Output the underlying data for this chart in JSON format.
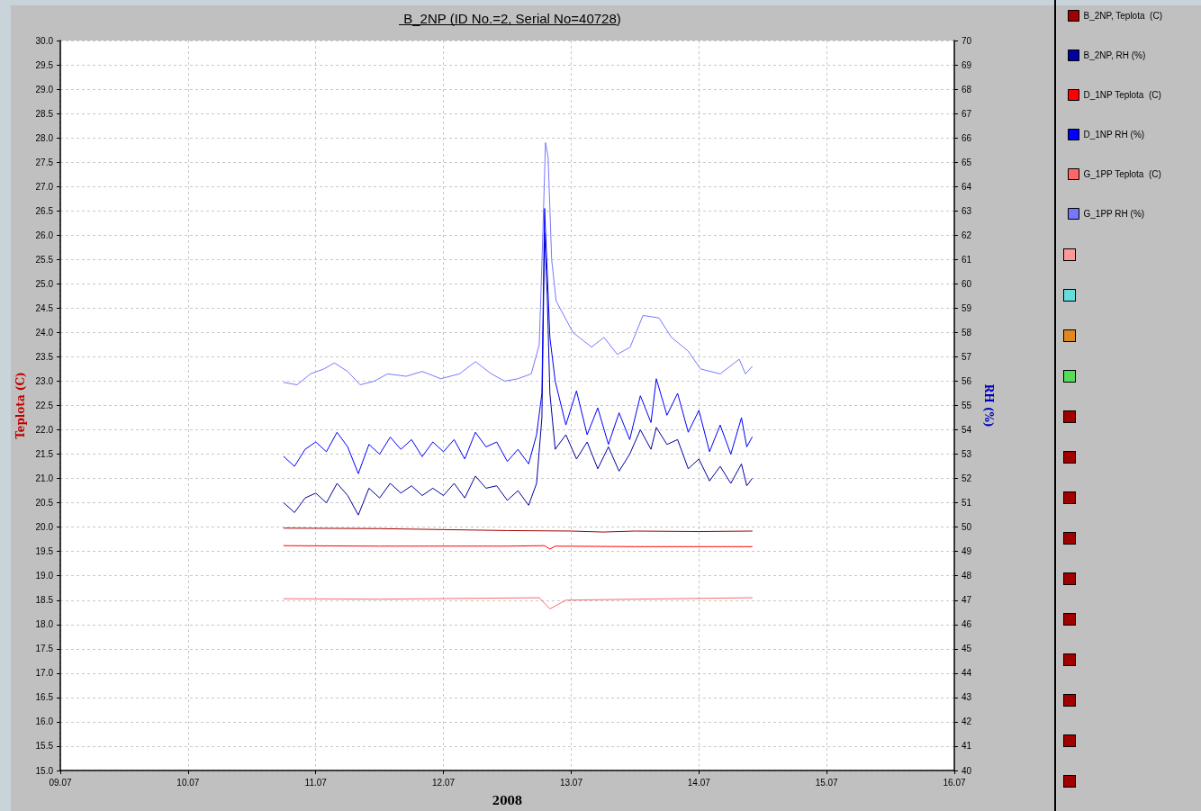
{
  "chart_data": {
    "type": "line",
    "title": "B_2NP (ID No.=2, Serial No=40728)",
    "xlabel": "2008",
    "ylabel": "Teplota (C)",
    "y2label": "RH (%)",
    "xlim": [
      "2008-07-09",
      "2008-07-16"
    ],
    "xticks": [
      {
        "value": "2008-07-09",
        "label": "09.07"
      },
      {
        "value": "2008-07-10",
        "label": "10.07"
      },
      {
        "value": "2008-07-11",
        "label": "11.07"
      },
      {
        "value": "2008-07-12",
        "label": "12.07"
      },
      {
        "value": "2008-07-13",
        "label": "13.07"
      },
      {
        "value": "2008-07-14",
        "label": "14.07"
      },
      {
        "value": "2008-07-15",
        "label": "15.07"
      },
      {
        "value": "2008-07-16",
        "label": "16.07"
      }
    ],
    "ylim": [
      15,
      30
    ],
    "yticks": [
      {
        "value": 15,
        "label": "15.0"
      },
      {
        "value": 15.5,
        "label": "15.5"
      },
      {
        "value": 16,
        "label": "16.0"
      },
      {
        "value": 16.5,
        "label": "16.5"
      },
      {
        "value": 17,
        "label": "17.0"
      },
      {
        "value": 17.5,
        "label": "17.5"
      },
      {
        "value": 18,
        "label": "18.0"
      },
      {
        "value": 18.5,
        "label": "18.5"
      },
      {
        "value": 19,
        "label": "19.0"
      },
      {
        "value": 19.5,
        "label": "19.5"
      },
      {
        "value": 20,
        "label": "20.0"
      },
      {
        "value": 20.5,
        "label": "20.5"
      },
      {
        "value": 21,
        "label": "21.0"
      },
      {
        "value": 21.5,
        "label": "21.5"
      },
      {
        "value": 22,
        "label": "22.0"
      },
      {
        "value": 22.5,
        "label": "22.5"
      },
      {
        "value": 23,
        "label": "23.0"
      },
      {
        "value": 23.5,
        "label": "23.5"
      },
      {
        "value": 24,
        "label": "24.0"
      },
      {
        "value": 24.5,
        "label": "24.5"
      },
      {
        "value": 25,
        "label": "25.0"
      },
      {
        "value": 25.5,
        "label": "25.5"
      },
      {
        "value": 26,
        "label": "26.0"
      },
      {
        "value": 26.5,
        "label": "26.5"
      },
      {
        "value": 27,
        "label": "27.0"
      },
      {
        "value": 27.5,
        "label": "27.5"
      },
      {
        "value": 28,
        "label": "28.0"
      },
      {
        "value": 28.5,
        "label": "28.5"
      },
      {
        "value": 29,
        "label": "29.0"
      },
      {
        "value": 29.5,
        "label": "29.5"
      },
      {
        "value": 30,
        "label": "30.0"
      }
    ],
    "y2lim": [
      40,
      70
    ],
    "y2ticks": [
      40,
      41,
      42,
      43,
      44,
      45,
      46,
      47,
      48,
      49,
      50,
      51,
      52,
      53,
      54,
      55,
      56,
      57,
      58,
      59,
      60,
      61,
      62,
      63,
      64,
      65,
      66,
      67,
      68,
      69,
      70
    ],
    "grid": true,
    "legend": "right",
    "marker": "none",
    "line_style": "solid",
    "series": [
      {
        "name": "B_2NP, Teplota  (C)",
        "color": "#a00000",
        "x": [
          "2008-07-10T18:00",
          "2008-07-11T12:00",
          "2008-07-12T00:00",
          "2008-07-12T12:00",
          "2008-07-13T00:00",
          "2008-07-13T06:00",
          "2008-07-13T12:00",
          "2008-07-14T00:00",
          "2008-07-14T10:00"
        ],
        "values": [
          19.98,
          19.97,
          19.95,
          19.93,
          19.92,
          19.9,
          19.92,
          19.91,
          19.92
        ]
      },
      {
        "name": "B_2NP, RH (%)",
        "color": "#0000a0",
        "axis": "y2",
        "x": [
          "2008-07-10T18:00",
          "2008-07-10T20:00",
          "2008-07-10T22:00",
          "2008-07-11T00:00",
          "2008-07-11T02:00",
          "2008-07-11T04:00",
          "2008-07-11T06:00",
          "2008-07-11T08:00",
          "2008-07-11T10:00",
          "2008-07-11T12:00",
          "2008-07-11T14:00",
          "2008-07-11T16:00",
          "2008-07-11T18:00",
          "2008-07-11T20:00",
          "2008-07-11T22:00",
          "2008-07-12T00:00",
          "2008-07-12T02:00",
          "2008-07-12T04:00",
          "2008-07-12T06:00",
          "2008-07-12T08:00",
          "2008-07-12T10:00",
          "2008-07-12T12:00",
          "2008-07-12T14:00",
          "2008-07-12T16:00",
          "2008-07-12T17:30",
          "2008-07-12T18:30",
          "2008-07-12T19:00",
          "2008-07-12T19:30",
          "2008-07-12T20:00",
          "2008-07-12T21:00",
          "2008-07-12T23:00",
          "2008-07-13T01:00",
          "2008-07-13T03:00",
          "2008-07-13T05:00",
          "2008-07-13T07:00",
          "2008-07-13T09:00",
          "2008-07-13T11:00",
          "2008-07-13T13:00",
          "2008-07-13T15:00",
          "2008-07-13T16:00",
          "2008-07-13T18:00",
          "2008-07-13T20:00",
          "2008-07-13T22:00",
          "2008-07-14T00:00",
          "2008-07-14T02:00",
          "2008-07-14T04:00",
          "2008-07-14T06:00",
          "2008-07-14T08:00",
          "2008-07-14T09:00",
          "2008-07-14T10:00"
        ],
        "values": [
          51.0,
          50.6,
          51.2,
          51.4,
          51.0,
          51.8,
          51.3,
          50.5,
          51.6,
          51.2,
          51.8,
          51.4,
          51.7,
          51.3,
          51.6,
          51.3,
          51.8,
          51.2,
          52.1,
          51.6,
          51.7,
          51.1,
          51.5,
          50.9,
          51.8,
          54.5,
          62.1,
          59.5,
          55.5,
          53.2,
          53.8,
          52.8,
          53.5,
          52.4,
          53.3,
          52.3,
          53.0,
          54.0,
          53.2,
          54.1,
          53.4,
          53.6,
          52.4,
          52.8,
          51.9,
          52.5,
          51.8,
          52.6,
          51.7,
          52.0
        ]
      },
      {
        "name": "D_1NP Teplota  (C)",
        "color": "#ff0000",
        "x": [
          "2008-07-10T18:00",
          "2008-07-11T12:00",
          "2008-07-12T12:00",
          "2008-07-12T19:00",
          "2008-07-12T20:00",
          "2008-07-12T21:00",
          "2008-07-13T12:00",
          "2008-07-14T10:00"
        ],
        "values": [
          19.62,
          19.61,
          19.61,
          19.62,
          19.55,
          19.61,
          19.6,
          19.6
        ]
      },
      {
        "name": "D_1NP RH (%)",
        "color": "#0000ff",
        "axis": "y2",
        "x": [
          "2008-07-10T18:00",
          "2008-07-10T20:00",
          "2008-07-10T22:00",
          "2008-07-11T00:00",
          "2008-07-11T02:00",
          "2008-07-11T04:00",
          "2008-07-11T06:00",
          "2008-07-11T08:00",
          "2008-07-11T10:00",
          "2008-07-11T12:00",
          "2008-07-11T14:00",
          "2008-07-11T16:00",
          "2008-07-11T18:00",
          "2008-07-11T20:00",
          "2008-07-11T22:00",
          "2008-07-12T00:00",
          "2008-07-12T02:00",
          "2008-07-12T04:00",
          "2008-07-12T06:00",
          "2008-07-12T08:00",
          "2008-07-12T10:00",
          "2008-07-12T12:00",
          "2008-07-12T14:00",
          "2008-07-12T16:00",
          "2008-07-12T17:30",
          "2008-07-12T18:30",
          "2008-07-12T19:00",
          "2008-07-12T19:30",
          "2008-07-12T20:00",
          "2008-07-12T21:00",
          "2008-07-12T23:00",
          "2008-07-13T01:00",
          "2008-07-13T03:00",
          "2008-07-13T05:00",
          "2008-07-13T07:00",
          "2008-07-13T09:00",
          "2008-07-13T11:00",
          "2008-07-13T13:00",
          "2008-07-13T15:00",
          "2008-07-13T16:00",
          "2008-07-13T18:00",
          "2008-07-13T20:00",
          "2008-07-13T22:00",
          "2008-07-14T00:00",
          "2008-07-14T02:00",
          "2008-07-14T04:00",
          "2008-07-14T06:00",
          "2008-07-14T08:00",
          "2008-07-14T09:00",
          "2008-07-14T10:00"
        ],
        "values": [
          52.9,
          52.5,
          53.2,
          53.5,
          53.1,
          53.9,
          53.3,
          52.2,
          53.4,
          53.0,
          53.7,
          53.2,
          53.6,
          52.9,
          53.5,
          53.1,
          53.6,
          52.8,
          53.9,
          53.3,
          53.5,
          52.7,
          53.2,
          52.6,
          53.8,
          55.5,
          63.1,
          60.5,
          57.8,
          56.0,
          54.2,
          55.6,
          53.8,
          54.9,
          53.4,
          54.7,
          53.6,
          55.4,
          54.3,
          56.1,
          54.6,
          55.5,
          53.9,
          54.8,
          53.1,
          54.2,
          53.0,
          54.5,
          53.3,
          53.7
        ]
      },
      {
        "name": "G_1PP Teplota  (C)",
        "color": "#ff6666",
        "x": [
          "2008-07-10T18:00",
          "2008-07-11T12:00",
          "2008-07-12T18:00",
          "2008-07-12T20:00",
          "2008-07-12T23:00",
          "2008-07-13T12:00",
          "2008-07-14T10:00"
        ],
        "values": [
          18.53,
          18.52,
          18.55,
          18.32,
          18.5,
          18.52,
          18.55
        ]
      },
      {
        "name": "G_1PP RH (%)",
        "color": "#7777ff",
        "axis": "y2",
        "x": [
          "2008-07-10T18:00",
          "2008-07-10T20:30",
          "2008-07-10T23:00",
          "2008-07-11T01:30",
          "2008-07-11T03:30",
          "2008-07-11T06:00",
          "2008-07-11T08:20",
          "2008-07-11T11:00",
          "2008-07-11T13:30",
          "2008-07-11T17:00",
          "2008-07-11T20:00",
          "2008-07-11T23:30",
          "2008-07-12T03:00",
          "2008-07-12T06:00",
          "2008-07-12T09:00",
          "2008-07-12T11:30",
          "2008-07-12T14:00",
          "2008-07-12T16:30",
          "2008-07-12T18:00",
          "2008-07-12T18:40",
          "2008-07-12T19:10",
          "2008-07-12T19:40",
          "2008-07-12T20:20",
          "2008-07-12T21:10",
          "2008-07-13T00:20",
          "2008-07-13T03:50",
          "2008-07-13T06:10",
          "2008-07-13T08:40",
          "2008-07-13T11:05",
          "2008-07-13T13:30",
          "2008-07-13T16:30",
          "2008-07-13T18:50",
          "2008-07-13T21:55",
          "2008-07-14T00:20",
          "2008-07-14T04:00",
          "2008-07-14T07:35",
          "2008-07-14T08:45",
          "2008-07-14T10:00"
        ],
        "values": [
          55.95,
          55.85,
          56.3,
          56.5,
          56.75,
          56.4,
          55.85,
          56.0,
          56.3,
          56.2,
          56.4,
          56.1,
          56.3,
          56.8,
          56.3,
          56.0,
          56.1,
          56.3,
          57.5,
          62.0,
          65.8,
          65.2,
          61.0,
          59.3,
          58.0,
          57.4,
          57.8,
          57.1,
          57.4,
          58.7,
          58.6,
          57.8,
          57.25,
          56.5,
          56.3,
          56.9,
          56.3,
          56.6
        ]
      }
    ]
  }
}
